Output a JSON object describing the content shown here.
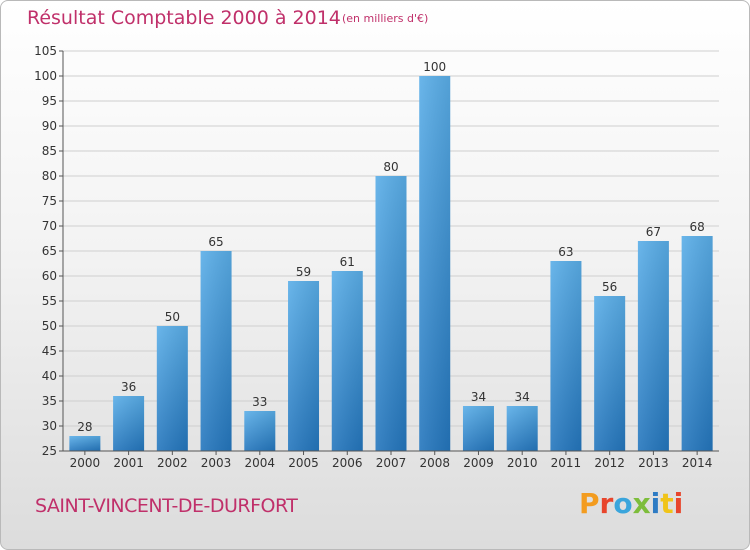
{
  "header": {
    "title": "Résultat Comptable 2000 à 2014",
    "subtitle": "(en milliers d'€)"
  },
  "footer": {
    "city": "SAINT-VINCENT-DE-DURFORT",
    "logo_text": "Proxiti",
    "logo_colors": [
      "#f39c1f",
      "#e8452c",
      "#3aa5dc",
      "#7dbd3b",
      "#2e7bc4",
      "#f0c419",
      "#e8452c"
    ]
  },
  "chart_data": {
    "type": "bar",
    "title": "Résultat Comptable 2000 à 2014",
    "subtitle": "(en milliers d'€)",
    "xlabel": "",
    "ylabel": "",
    "categories": [
      "2000",
      "2001",
      "2002",
      "2003",
      "2004",
      "2005",
      "2006",
      "2007",
      "2008",
      "2009",
      "2010",
      "2011",
      "2012",
      "2013",
      "2014"
    ],
    "values": [
      28,
      36,
      50,
      65,
      33,
      59,
      61,
      80,
      100,
      34,
      34,
      63,
      56,
      67,
      68
    ],
    "ylim": [
      25,
      105
    ],
    "yticks": [
      25,
      30,
      35,
      40,
      45,
      50,
      55,
      60,
      65,
      70,
      75,
      80,
      85,
      90,
      95,
      100,
      105
    ],
    "grid": true,
    "bar_color": "#3d94d6"
  }
}
